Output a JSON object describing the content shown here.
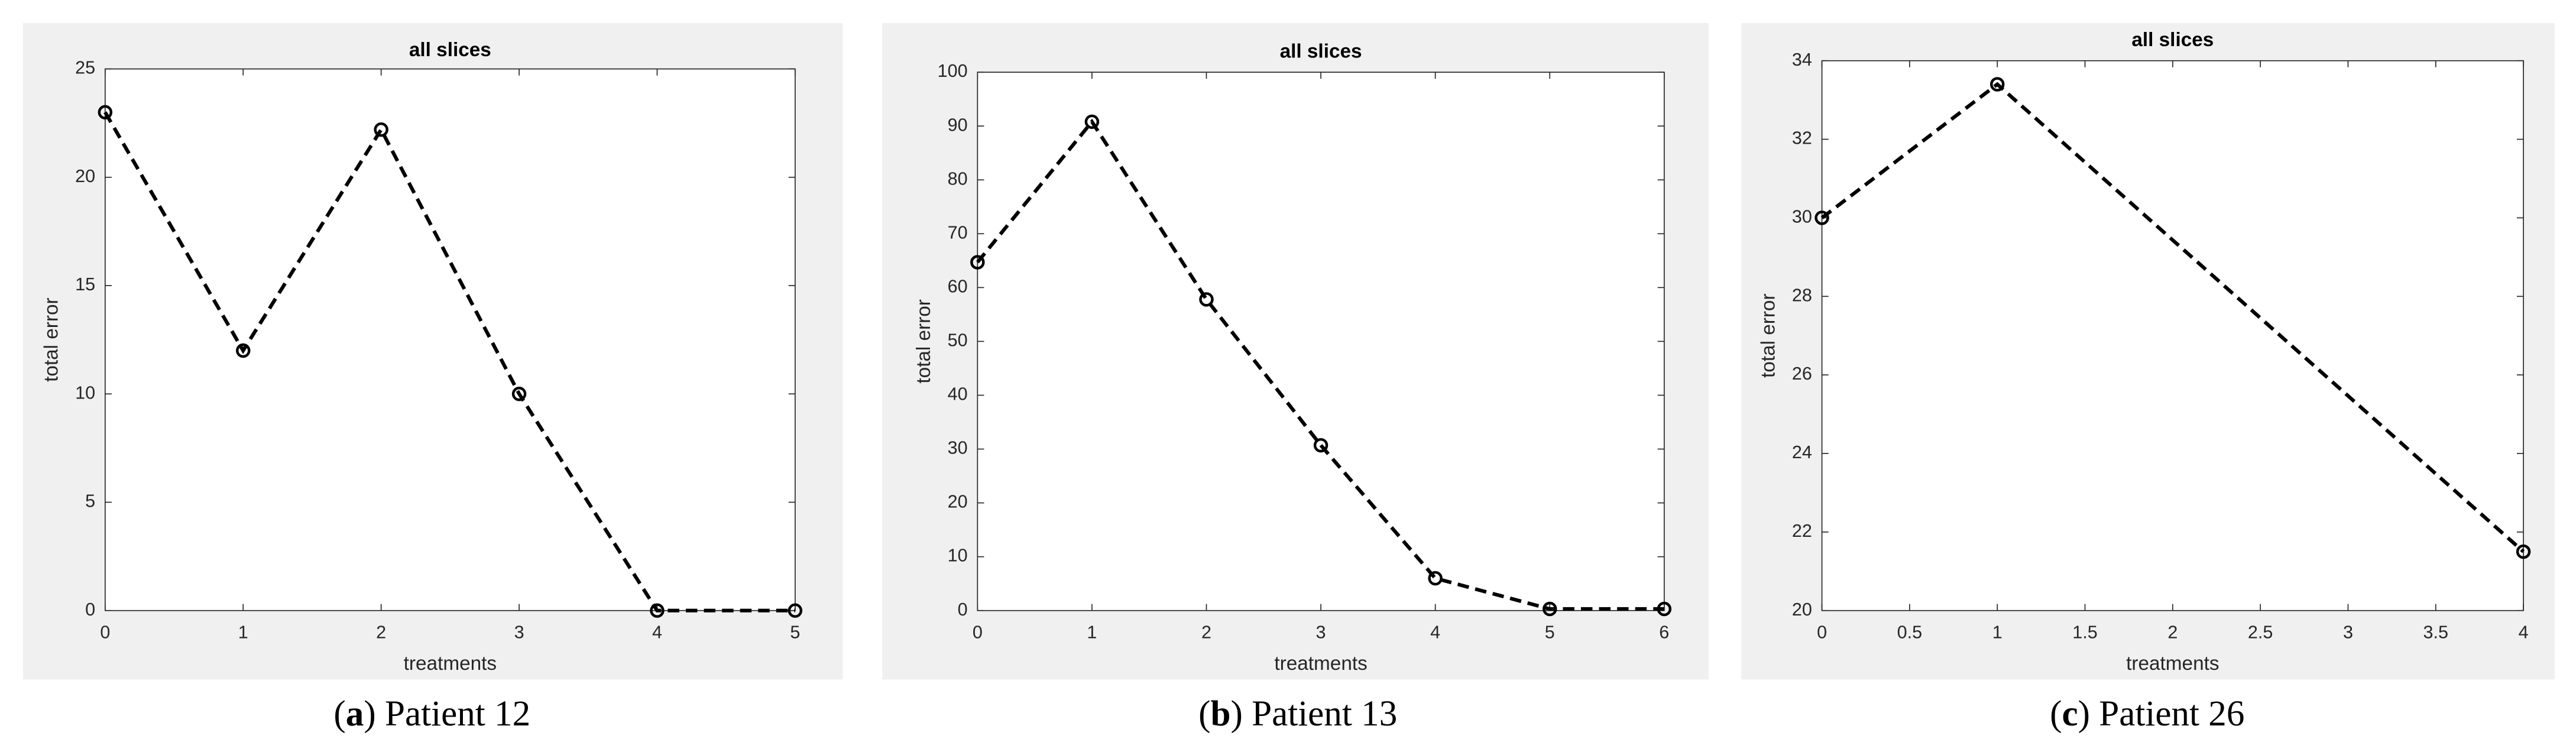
{
  "chart_data": [
    {
      "type": "line",
      "title": "all slices",
      "xlabel": "treatments",
      "ylabel": "total error",
      "x": [
        0,
        1,
        2,
        3,
        4,
        5
      ],
      "values": [
        23,
        12,
        22.2,
        10,
        0,
        0
      ],
      "xlim": [
        0,
        5
      ],
      "xticks": [
        0,
        1,
        2,
        3,
        4,
        5
      ],
      "ylim": [
        0,
        25
      ],
      "yticks": [
        0,
        5,
        10,
        15,
        20,
        25
      ],
      "color": "#000000",
      "linestyle": "dashed",
      "marker": "o",
      "grid": false
    },
    {
      "type": "line",
      "title": "all slices",
      "xlabel": "treatments",
      "ylabel": "total error",
      "x": [
        0,
        1,
        2,
        3,
        4,
        5,
        6
      ],
      "values": [
        64.7,
        90.8,
        57.8,
        30.7,
        6,
        0.3,
        0.3
      ],
      "xlim": [
        0,
        6
      ],
      "xticks": [
        0,
        1,
        2,
        3,
        4,
        5,
        6
      ],
      "ylim": [
        0,
        100
      ],
      "yticks": [
        0,
        10,
        20,
        30,
        40,
        50,
        60,
        70,
        80,
        90,
        100
      ],
      "color": "#000000",
      "linestyle": "dashed",
      "marker": "o",
      "grid": false
    },
    {
      "type": "line",
      "title": "all slices",
      "xlabel": "treatments",
      "ylabel": "total error",
      "x": [
        0,
        1,
        4
      ],
      "values": [
        30,
        33.4,
        21.5
      ],
      "xlim": [
        0,
        4
      ],
      "xticks": [
        0,
        0.5,
        1,
        1.5,
        2,
        2.5,
        3,
        3.5,
        4
      ],
      "ylim": [
        20,
        34
      ],
      "yticks": [
        20,
        22,
        24,
        26,
        28,
        30,
        32,
        34
      ],
      "color": "#000000",
      "linestyle": "dashed",
      "marker": "o",
      "grid": false
    }
  ],
  "captions": [
    {
      "label": "a",
      "text": "Patient 12"
    },
    {
      "label": "b",
      "text": "Patient 13"
    },
    {
      "label": "c",
      "text": "Patient 26"
    }
  ]
}
